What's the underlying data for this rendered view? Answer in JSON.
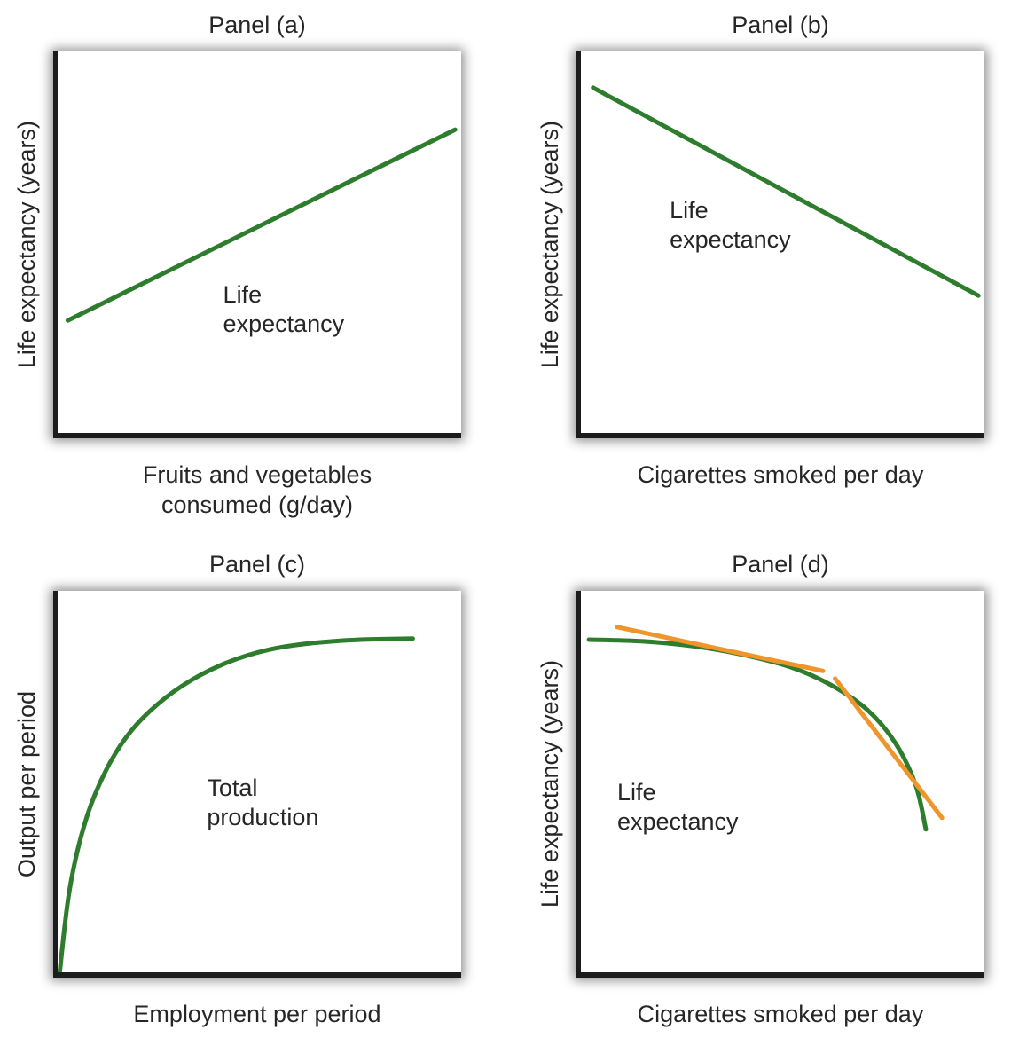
{
  "colors": {
    "green": "#2e7d2e",
    "orange": "#f0952b",
    "axis": "#1c1c1c",
    "text": "#262626",
    "background": "#ffffff"
  },
  "chart_data": [
    {
      "type": "line",
      "title": "Panel (a)",
      "xlabel": "Fruits and vegetables consumed (g/day)",
      "xlabel_lines": [
        "Fruits and vegetables",
        "consumed (g/day)"
      ],
      "ylabel": "Life expectancy (years)",
      "axis_ticks": "none",
      "coord_note": "series points are fractions of the plot area; y measured up from the x-axis",
      "annotation": {
        "lines": [
          "Life",
          "expectancy"
        ],
        "x": 0.41,
        "y": 0.6
      },
      "series": [
        {
          "name": "Life expectancy",
          "color": "green",
          "width": 5,
          "smooth": false,
          "points": [
            [
              0.025,
              0.295
            ],
            [
              0.985,
              0.795
            ]
          ]
        }
      ]
    },
    {
      "type": "line",
      "title": "Panel (b)",
      "xlabel": "Cigarettes smoked per day",
      "xlabel_lines": [
        "Cigarettes smoked per day"
      ],
      "ylabel": "Life expectancy (years)",
      "axis_ticks": "none",
      "coord_note": "series points are fractions of the plot area; y measured up from the x-axis",
      "annotation": {
        "lines": [
          "Life",
          "expectancy"
        ],
        "x": 0.22,
        "y": 0.38
      },
      "series": [
        {
          "name": "Life expectancy",
          "color": "green",
          "width": 5,
          "smooth": false,
          "points": [
            [
              0.03,
              0.905
            ],
            [
              0.985,
              0.36
            ]
          ]
        }
      ]
    },
    {
      "type": "line",
      "title": "Panel (c)",
      "xlabel": "Employment per period",
      "xlabel_lines": [
        "Employment per period"
      ],
      "ylabel": "Output per period",
      "axis_ticks": "none",
      "coord_note": "series points are fractions of the plot area; y measured up from the x-axis",
      "annotation": {
        "lines": [
          "Total",
          "production"
        ],
        "x": 0.37,
        "y": 0.48
      },
      "series": [
        {
          "name": "Total production",
          "color": "green",
          "width": 5,
          "smooth": true,
          "points": [
            [
              0.005,
              0.0
            ],
            [
              0.03,
              0.22
            ],
            [
              0.07,
              0.4
            ],
            [
              0.12,
              0.53
            ],
            [
              0.18,
              0.63
            ],
            [
              0.25,
              0.705
            ],
            [
              0.33,
              0.765
            ],
            [
              0.42,
              0.812
            ],
            [
              0.52,
              0.845
            ],
            [
              0.63,
              0.863
            ],
            [
              0.75,
              0.872
            ],
            [
              0.88,
              0.875
            ]
          ]
        }
      ]
    },
    {
      "type": "line",
      "title": "Panel (d)",
      "xlabel": "Cigarettes smoked per day",
      "xlabel_lines": [
        "Cigarettes smoked per day"
      ],
      "ylabel": "Life expectancy (years)",
      "axis_ticks": "none",
      "coord_note": "series points are fractions of the plot area; y measured up from the x-axis",
      "annotation": {
        "lines": [
          "Life",
          "expectancy"
        ],
        "x": 0.09,
        "y": 0.49
      },
      "series": [
        {
          "name": "Life expectancy",
          "color": "green",
          "width": 5,
          "smooth": true,
          "points": [
            [
              0.02,
              0.872
            ],
            [
              0.15,
              0.868
            ],
            [
              0.28,
              0.855
            ],
            [
              0.4,
              0.833
            ],
            [
              0.52,
              0.8
            ],
            [
              0.62,
              0.753
            ],
            [
              0.71,
              0.688
            ],
            [
              0.78,
              0.6
            ],
            [
              0.83,
              0.49
            ],
            [
              0.855,
              0.375
            ]
          ]
        },
        {
          "name": "Tangent line (shallow segment)",
          "color": "orange",
          "width": 5,
          "smooth": false,
          "points": [
            [
              0.09,
              0.905
            ],
            [
              0.6,
              0.79
            ]
          ]
        },
        {
          "name": "Tangent line (steep segment)",
          "color": "orange",
          "width": 5,
          "smooth": false,
          "points": [
            [
              0.63,
              0.77
            ],
            [
              0.895,
              0.405
            ]
          ]
        }
      ]
    }
  ]
}
